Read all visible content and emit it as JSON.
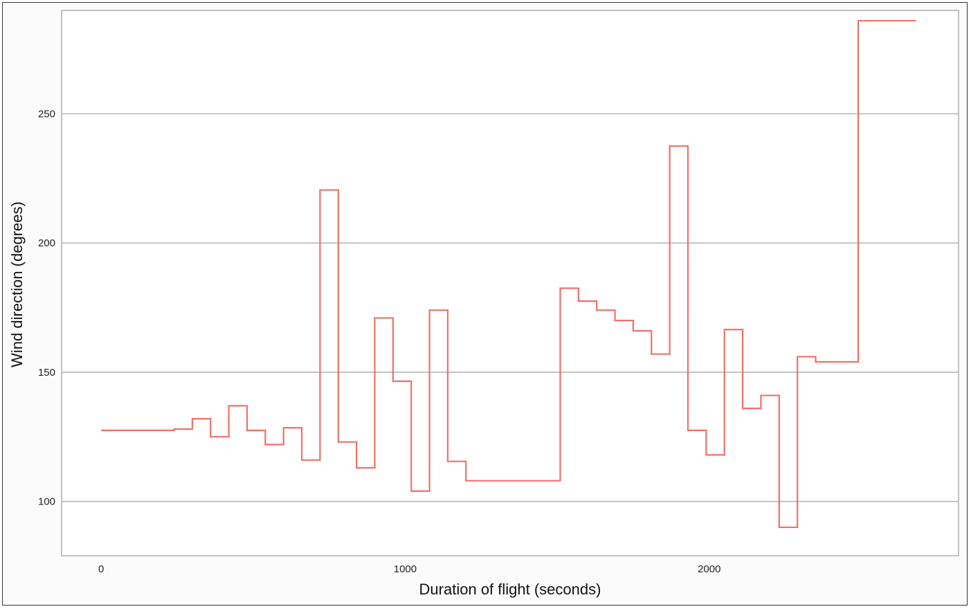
{
  "chart_data": {
    "type": "line",
    "step": true,
    "title": "",
    "xlabel": "Duration of flight (seconds)",
    "ylabel": "Wind direction (degrees)",
    "xlim": [
      -130,
      2820
    ],
    "ylim": [
      79,
      290
    ],
    "x_ticks": [
      0,
      1000,
      2000
    ],
    "y_ticks": [
      100,
      150,
      200,
      250
    ],
    "grid": {
      "horizontal": true,
      "vertical": false
    },
    "legend": "none",
    "colors": {
      "line": "#f07068",
      "grid": "#b5b5b5",
      "panel_border": "#999999"
    },
    "series": [
      {
        "x": [
          0,
          240,
          300,
          360,
          420,
          480,
          540,
          600,
          660,
          720,
          780,
          840,
          900,
          960,
          1020,
          1080,
          1140,
          1200,
          1510,
          1570,
          1630,
          1690,
          1750,
          1810,
          1870,
          1930,
          1990,
          2050,
          2110,
          2170,
          2230,
          2290,
          2350,
          2430,
          2490,
          2680
        ],
        "y": [
          127.5,
          128,
          132,
          125,
          137,
          127.5,
          122,
          128.5,
          116,
          220.5,
          123,
          113,
          171,
          146.5,
          104,
          174,
          115.5,
          108,
          182.5,
          177.5,
          174,
          170,
          166,
          157,
          237.5,
          127.5,
          118,
          166.5,
          136,
          141,
          90,
          156,
          154,
          154,
          286,
          286
        ]
      }
    ]
  }
}
